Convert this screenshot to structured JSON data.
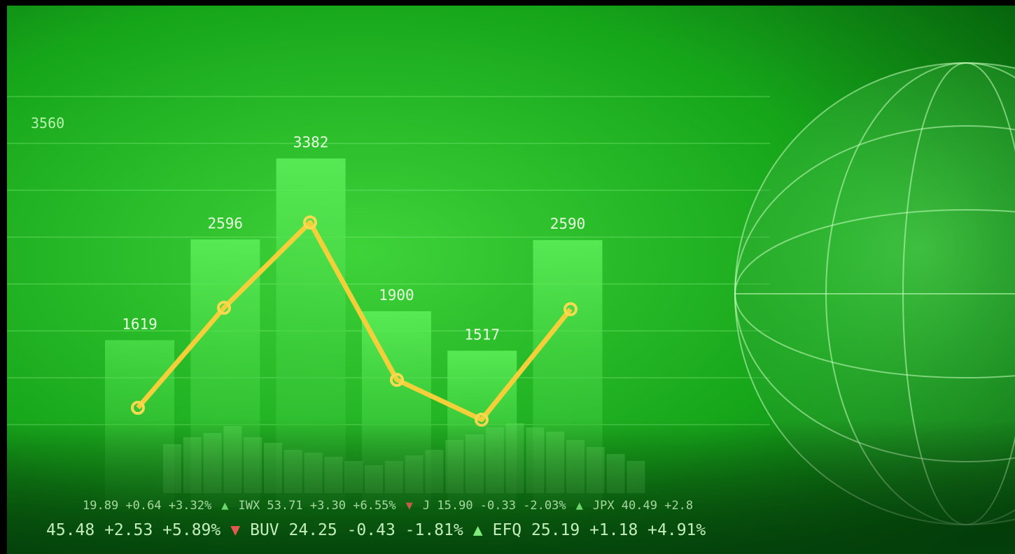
{
  "scale_label": "3560",
  "bars": [
    {
      "value": 1619
    },
    {
      "value": 2596
    },
    {
      "value": 3382
    },
    {
      "value": 1900
    },
    {
      "value": 1517
    },
    {
      "value": 2590
    }
  ],
  "ticker": [
    [
      "19.89 +0.64 +3.32%",
      "▲",
      "IWX 53.71 +3.30 +6.55%",
      "▼",
      "J 15.90 -0.33 -2.03%",
      "▲",
      "JPX 40.49 +2.8"
    ],
    [
      "45.48 +2.53 +5.89%",
      "▼",
      "BUV 24.25 -0.43 -1.81%",
      "▲",
      "EFQ 25.19 +1.18 +4.91%"
    ]
  ]
}
